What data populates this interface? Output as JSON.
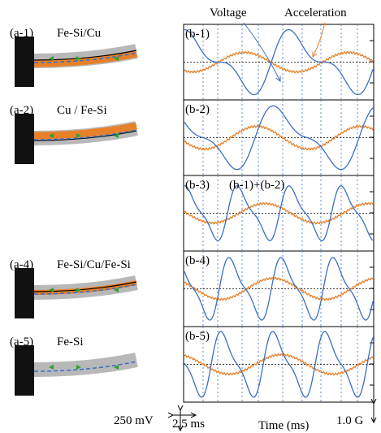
{
  "panels_a": [
    {
      "label": "(a-1)",
      "name": "Fe-Si/Cu"
    },
    {
      "label": "(a-2)",
      "name": "Cu / Fe-Si"
    },
    {
      "label": "(a-4)",
      "name": "Fe-Si/Cu/Fe-Si"
    },
    {
      "label": "(a-5)",
      "name": "Fe-Si"
    }
  ],
  "panels_b": [
    {
      "label": "(b-1)"
    },
    {
      "label": "(b-2)"
    },
    {
      "label": "(b-3)",
      "caption": "(b-1)+(b-2)"
    },
    {
      "label": "(b-4)"
    },
    {
      "label": "(b-5)"
    }
  ],
  "legend": {
    "voltage": "Voltage",
    "acceleration": "Acceleration"
  },
  "scale": {
    "voltage": "250 mV",
    "time": "2.5 ms",
    "acceleration": "1.0 G"
  },
  "x_axis_label": "Time (ms)"
}
